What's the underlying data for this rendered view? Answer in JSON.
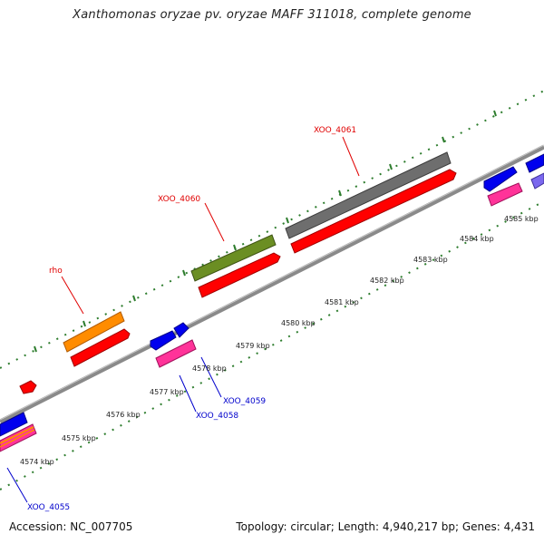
{
  "title": "Xanthomonas oryzae pv. oryzae MAFF 311018, complete genome",
  "footer": {
    "accession": "Accession: NC_007705",
    "stats": "Topology: circular; Length: 4,940,217 bp; Genes: 4,431"
  },
  "colors": {
    "backbone": "#8a8a8a",
    "tick_green": "#2e7d2e",
    "label_red": "#e00000",
    "label_blue": "#0000cc"
  },
  "scale": {
    "unit": "kbp",
    "ticks": [
      {
        "kbp": 4574,
        "label": "4574 kbp"
      },
      {
        "kbp": 4575,
        "label": "4575 kbp"
      },
      {
        "kbp": 4576,
        "label": "4576 kbp"
      },
      {
        "kbp": 4577,
        "label": "4577 kbp"
      },
      {
        "kbp": 4578,
        "label": "4578 kbp"
      },
      {
        "kbp": 4579,
        "label": "4579 kbp"
      },
      {
        "kbp": 4580,
        "label": "4580 kbp"
      },
      {
        "kbp": 4581,
        "label": "4581 kbp"
      },
      {
        "kbp": 4582,
        "label": "4582 kbp"
      },
      {
        "kbp": 4583,
        "label": "4583 kbp"
      },
      {
        "kbp": 4584,
        "label": "4584 kbp"
      },
      {
        "kbp": 4585,
        "label": "4585 kbp"
      }
    ]
  },
  "gene_labels": [
    {
      "name": "rho",
      "color": "#e00000"
    },
    {
      "name": "XOO_4060",
      "color": "#e00000"
    },
    {
      "name": "XOO_4061",
      "color": "#e00000"
    },
    {
      "name": "XOO_4059",
      "color": "#0000cc"
    },
    {
      "name": "XOO_4058",
      "color": "#0000cc"
    },
    {
      "name": "XOO_4055",
      "color": "#0000cc"
    }
  ]
}
